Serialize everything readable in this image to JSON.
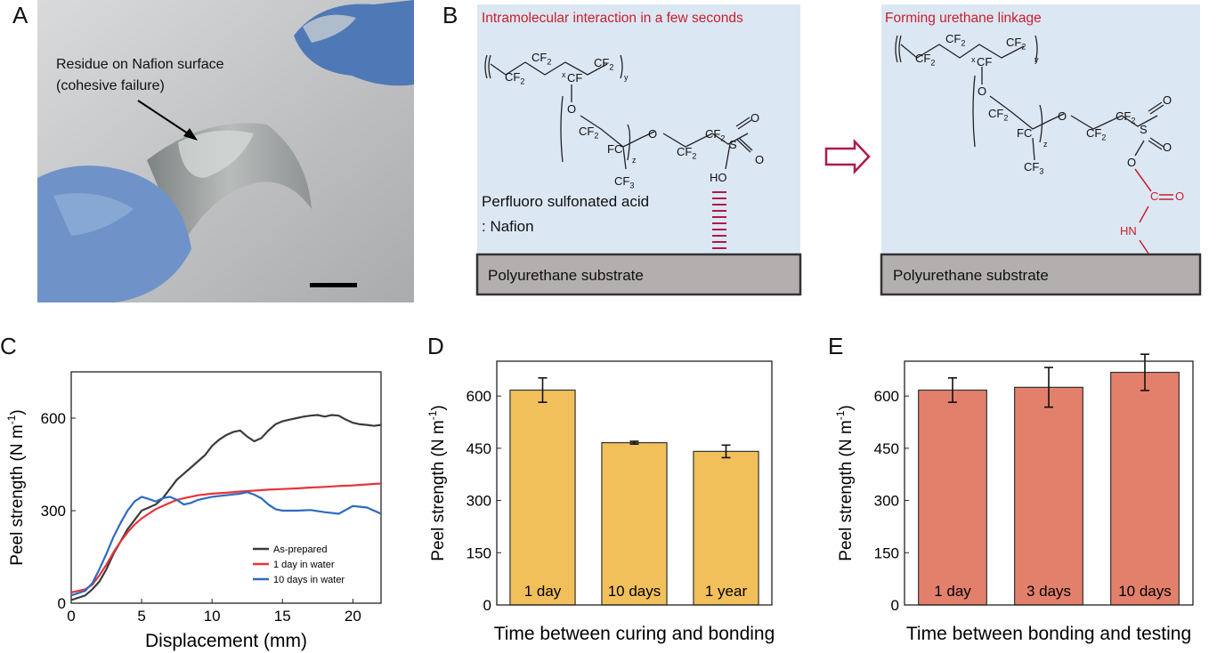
{
  "panels": {
    "a": "A",
    "b": "B",
    "c": "C",
    "d": "D",
    "e": "E"
  },
  "photo": {
    "annotation_line1": "Residue on Nafion surface",
    "annotation_line2": "(cohesive failure)"
  },
  "schematic": {
    "left_title": "Intramolecular interaction in a few seconds",
    "right_title": "Forming urethane linkage",
    "nafion_line1": "Perfluoro sulfonated acid",
    "nafion_line2": ": Nafion",
    "substrate_label": "Polyurethane substrate",
    "chem": {
      "cf2": "CF",
      "sub2": "2",
      "cf3": "CF",
      "sub3": "3",
      "cf": "CF",
      "fc": "FC",
      "o": "O",
      "s": "S",
      "ho": "HO",
      "c": "C",
      "hn": "HN",
      "x": "x",
      "y": "y",
      "z": "z"
    },
    "colors": {
      "title_red": "#c8202a",
      "panel_blue": "#dce7f4",
      "substrate_gray": "#b3afae",
      "arrow": "#b0194a"
    }
  },
  "chart_data": [
    {
      "id": "C",
      "type": "line",
      "title": "",
      "xlabel": "Displacement (mm)",
      "ylabel": "Peel strength (N m",
      "ylabel_sup": "-1",
      "ylabel_close": ")",
      "xlim": [
        0,
        22
      ],
      "ylim": [
        0,
        750
      ],
      "xticks": [
        0,
        5,
        10,
        15,
        20
      ],
      "yticks": [
        0,
        300,
        600
      ],
      "legend_position": "bottom-right",
      "series": [
        {
          "name": "As-prepared",
          "color": "#3b3b3b",
          "x": [
            0,
            1,
            1.5,
            2,
            2.5,
            3,
            3.5,
            4,
            4.5,
            5,
            5.5,
            6,
            6.5,
            7,
            7.5,
            8,
            8.5,
            9,
            9.5,
            10,
            10.5,
            11,
            11.5,
            12,
            12.5,
            13,
            13.5,
            14,
            14.5,
            15,
            15.5,
            16,
            16.5,
            17,
            17.5,
            18,
            18.5,
            19,
            19.5,
            20,
            20.5,
            21,
            21.5,
            22
          ],
          "y": [
            10,
            25,
            45,
            70,
            110,
            160,
            200,
            240,
            270,
            300,
            310,
            320,
            340,
            370,
            400,
            420,
            440,
            460,
            480,
            510,
            530,
            545,
            555,
            560,
            540,
            525,
            535,
            560,
            580,
            590,
            595,
            600,
            605,
            608,
            610,
            605,
            610,
            608,
            595,
            585,
            580,
            578,
            575,
            578
          ]
        },
        {
          "name": "1 day in water",
          "color": "#e8333a",
          "x": [
            0,
            1,
            1.5,
            2,
            2.5,
            3,
            3.5,
            4,
            4.5,
            5,
            5.5,
            6,
            6.5,
            7,
            7.5,
            8,
            9,
            10,
            11,
            12,
            13,
            14,
            15,
            16,
            17,
            18,
            19,
            20,
            21,
            22
          ],
          "y": [
            35,
            45,
            60,
            90,
            125,
            165,
            200,
            230,
            255,
            275,
            290,
            305,
            315,
            325,
            335,
            340,
            350,
            355,
            358,
            362,
            365,
            368,
            370,
            372,
            375,
            377,
            380,
            382,
            385,
            388
          ]
        },
        {
          "name": "10 days in water",
          "color": "#2e6bbf",
          "x": [
            0,
            1,
            1.5,
            2,
            2.5,
            3,
            3.5,
            4,
            4.5,
            5,
            5.5,
            6,
            6.5,
            7,
            7.5,
            8,
            8.5,
            9,
            10,
            11,
            12,
            12.5,
            13,
            13.5,
            14,
            14.5,
            15,
            16,
            17,
            18,
            19,
            20,
            21,
            22
          ],
          "y": [
            25,
            40,
            65,
            110,
            160,
            215,
            260,
            300,
            330,
            345,
            338,
            330,
            340,
            345,
            335,
            320,
            325,
            335,
            345,
            350,
            355,
            360,
            352,
            340,
            320,
            305,
            300,
            300,
            302,
            295,
            290,
            315,
            310,
            290
          ]
        }
      ]
    },
    {
      "id": "D",
      "type": "bar",
      "xlabel": "Time between curing and bonding",
      "ylabel": "Peel strength (N m",
      "ylabel_sup": "-1",
      "ylabel_close": ")",
      "ylim": [
        0,
        700
      ],
      "yticks": [
        0,
        150,
        300,
        450,
        600
      ],
      "categories": [
        "1 day",
        "10 days",
        "1 year"
      ],
      "values": [
        617,
        466,
        441
      ],
      "errors": [
        35,
        4,
        18
      ],
      "color": "#f2c05b"
    },
    {
      "id": "E",
      "type": "bar",
      "xlabel": "Time between bonding and testing",
      "ylabel": "Peel strength (N m",
      "ylabel_sup": "-1",
      "ylabel_close": ")",
      "ylim": [
        0,
        700
      ],
      "yticks": [
        0,
        150,
        300,
        450,
        600
      ],
      "categories": [
        "1 day",
        "3 days",
        "10 days"
      ],
      "values": [
        617,
        625,
        668
      ],
      "errors": [
        35,
        57,
        52
      ],
      "color": "#e3806c"
    }
  ]
}
